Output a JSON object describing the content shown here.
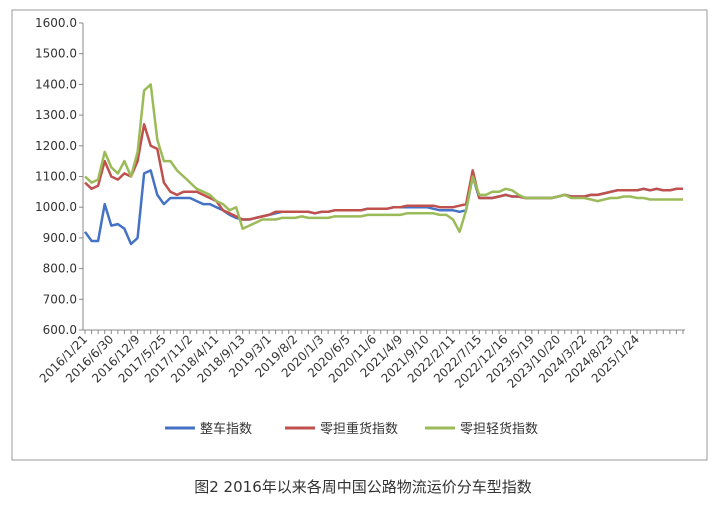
{
  "chart_data": {
    "type": "line",
    "caption": "图2 2016年以来各周中国公路物流运价分车型指数",
    "categories": [
      "2016/1/21",
      null,
      null,
      null,
      "2016/6/30",
      null,
      null,
      null,
      "2016/12/9",
      null,
      null,
      null,
      "2017/5/25",
      null,
      null,
      null,
      "2017/11/2",
      null,
      null,
      null,
      "2018/4/11",
      null,
      null,
      null,
      "2018/9/13",
      null,
      null,
      null,
      "2019/3/1",
      null,
      null,
      null,
      "2019/8/2",
      null,
      null,
      null,
      "2020/1/3",
      null,
      null,
      null,
      "2020/6/5",
      null,
      null,
      null,
      "2020/11/6",
      null,
      null,
      null,
      "2021/4/9",
      null,
      null,
      null,
      "2021/9/10",
      null,
      null,
      null,
      "2022/2/11",
      null,
      null,
      null,
      "2022/7/15",
      null,
      null,
      null,
      "2022/12/16",
      null,
      null,
      null,
      "2023/5/19",
      null,
      null,
      null,
      "2023/10/20",
      null,
      null,
      null,
      "2024/3/22",
      null,
      null,
      null,
      "2024/8/23",
      null,
      null,
      null,
      "2025/1/24",
      null,
      null,
      null,
      null,
      null,
      null,
      null
    ],
    "series": [
      {
        "name": "整车指数",
        "color": "#4472c4",
        "values": [
          920,
          890,
          890,
          1010,
          940,
          945,
          930,
          880,
          900,
          1110,
          1120,
          1040,
          1010,
          1030,
          1030,
          1030,
          1030,
          1020,
          1010,
          1010,
          1000,
          990,
          975,
          965,
          960,
          960,
          965,
          970,
          975,
          980,
          985,
          985,
          985,
          985,
          985,
          980,
          985,
          985,
          990,
          990,
          990,
          990,
          990,
          995,
          995,
          995,
          995,
          1000,
          1000,
          1000,
          1000,
          1000,
          1000,
          995,
          990,
          990,
          990,
          985,
          990,
          1100,
          1030,
          1030,
          1030,
          1035,
          1040,
          1035,
          1035,
          1030,
          1030,
          1030,
          1030,
          1030,
          1035,
          1040,
          1035,
          1035,
          1035,
          1040,
          1040,
          1045,
          1050,
          1055,
          1055,
          1055,
          1055,
          1060,
          1055,
          1060,
          1055,
          1055,
          1060,
          1060
        ]
      },
      {
        "name": "零担重货指数",
        "color": "#c0504d",
        "values": [
          1080,
          1060,
          1070,
          1150,
          1100,
          1090,
          1110,
          1100,
          1150,
          1270,
          1200,
          1190,
          1080,
          1050,
          1040,
          1050,
          1050,
          1050,
          1040,
          1030,
          1020,
          990,
          980,
          970,
          960,
          960,
          965,
          970,
          975,
          985,
          985,
          985,
          985,
          985,
          985,
          980,
          985,
          985,
          990,
          990,
          990,
          990,
          990,
          995,
          995,
          995,
          995,
          1000,
          1000,
          1005,
          1005,
          1005,
          1005,
          1005,
          1000,
          1000,
          1000,
          1005,
          1010,
          1120,
          1030,
          1030,
          1030,
          1035,
          1040,
          1035,
          1035,
          1030,
          1030,
          1030,
          1030,
          1030,
          1035,
          1040,
          1035,
          1035,
          1035,
          1040,
          1040,
          1045,
          1050,
          1055,
          1055,
          1055,
          1055,
          1060,
          1055,
          1060,
          1055,
          1055,
          1060,
          1060
        ]
      },
      {
        "name": "零担轻货指数",
        "color": "#9bbb59",
        "values": [
          1100,
          1080,
          1090,
          1180,
          1130,
          1110,
          1150,
          1100,
          1180,
          1380,
          1400,
          1220,
          1150,
          1150,
          1120,
          1100,
          1080,
          1060,
          1050,
          1040,
          1020,
          1010,
          990,
          1000,
          930,
          940,
          950,
          960,
          960,
          960,
          965,
          965,
          965,
          970,
          965,
          965,
          965,
          965,
          970,
          970,
          970,
          970,
          970,
          975,
          975,
          975,
          975,
          975,
          975,
          980,
          980,
          980,
          980,
          980,
          975,
          975,
          960,
          920,
          990,
          1100,
          1040,
          1040,
          1050,
          1050,
          1060,
          1055,
          1040,
          1030,
          1030,
          1030,
          1030,
          1030,
          1035,
          1040,
          1030,
          1030,
          1030,
          1025,
          1020,
          1025,
          1030,
          1030,
          1035,
          1035,
          1030,
          1030,
          1025,
          1025,
          1025,
          1025,
          1025,
          1025
        ]
      }
    ],
    "ylim": [
      600,
      1600
    ],
    "yticks": [
      {
        "value": 600,
        "label": "600.0"
      },
      {
        "value": 700,
        "label": "700.0"
      },
      {
        "value": 800,
        "label": "800.0"
      },
      {
        "value": 900,
        "label": "900.0"
      },
      {
        "value": 1000,
        "label": "1000.0"
      },
      {
        "value": 1100,
        "label": "1100.0"
      },
      {
        "value": 1200,
        "label": "1200.0"
      },
      {
        "value": 1300,
        "label": "1300.0"
      },
      {
        "value": 1400,
        "label": "1400.0"
      },
      {
        "value": 1500,
        "label": "1500.0"
      },
      {
        "value": 1600,
        "label": "1600.0"
      }
    ],
    "grid": false,
    "legend": "bottom"
  }
}
